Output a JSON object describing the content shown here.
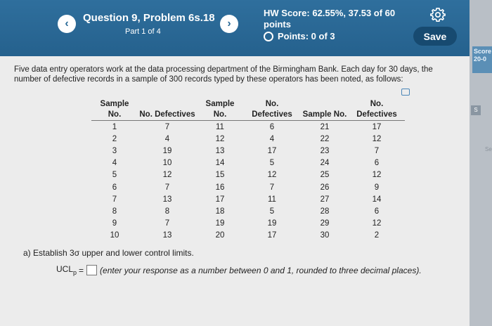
{
  "header": {
    "question_title": "Question 9, Problem 6s.18",
    "part_label": "Part 1 of 4",
    "hw_score_line1": "HW Score: 62.55%, 37.53 of 60",
    "hw_score_line2": "points",
    "points": "Points: 0 of 3",
    "save_label": "Save",
    "prev_symbol": "‹",
    "next_symbol": "›"
  },
  "sidebar": {
    "score_fragment": "Score 20-0",
    "badge": "S",
    "fragment": "Se"
  },
  "problem": {
    "intro": "Five data entry operators work at the data processing department of the Birmingham Bank. Each day for 30 days, the number of defective records in a sample of 300 records typed by these operators has been noted, as follows:",
    "col_sample": "Sample No.",
    "col_defects": "No. Defectives",
    "rows": [
      {
        "a_s": "1",
        "a_d": "7",
        "b_s": "11",
        "b_d": "6",
        "c_s": "21",
        "c_d": "17"
      },
      {
        "a_s": "2",
        "a_d": "4",
        "b_s": "12",
        "b_d": "4",
        "c_s": "22",
        "c_d": "12"
      },
      {
        "a_s": "3",
        "a_d": "19",
        "b_s": "13",
        "b_d": "17",
        "c_s": "23",
        "c_d": "7"
      },
      {
        "a_s": "4",
        "a_d": "10",
        "b_s": "14",
        "b_d": "5",
        "c_s": "24",
        "c_d": "6"
      },
      {
        "a_s": "5",
        "a_d": "12",
        "b_s": "15",
        "b_d": "12",
        "c_s": "25",
        "c_d": "12"
      },
      {
        "a_s": "6",
        "a_d": "7",
        "b_s": "16",
        "b_d": "7",
        "c_s": "26",
        "c_d": "9"
      },
      {
        "a_s": "7",
        "a_d": "13",
        "b_s": "17",
        "b_d": "11",
        "c_s": "27",
        "c_d": "14"
      },
      {
        "a_s": "8",
        "a_d": "8",
        "b_s": "18",
        "b_d": "5",
        "c_s": "28",
        "c_d": "6"
      },
      {
        "a_s": "9",
        "a_d": "7",
        "b_s": "19",
        "b_d": "19",
        "c_s": "29",
        "c_d": "12"
      },
      {
        "a_s": "10",
        "a_d": "13",
        "b_s": "20",
        "b_d": "17",
        "c_s": "30",
        "c_d": "2"
      }
    ],
    "instruction": "a) Establish 3σ upper and lower control limits.",
    "ucl_label": "UCL",
    "ucl_sub": "p",
    "ucl_eq": "=",
    "hint": "(enter your response as a number between 0 and 1, rounded to three decimal places)."
  }
}
